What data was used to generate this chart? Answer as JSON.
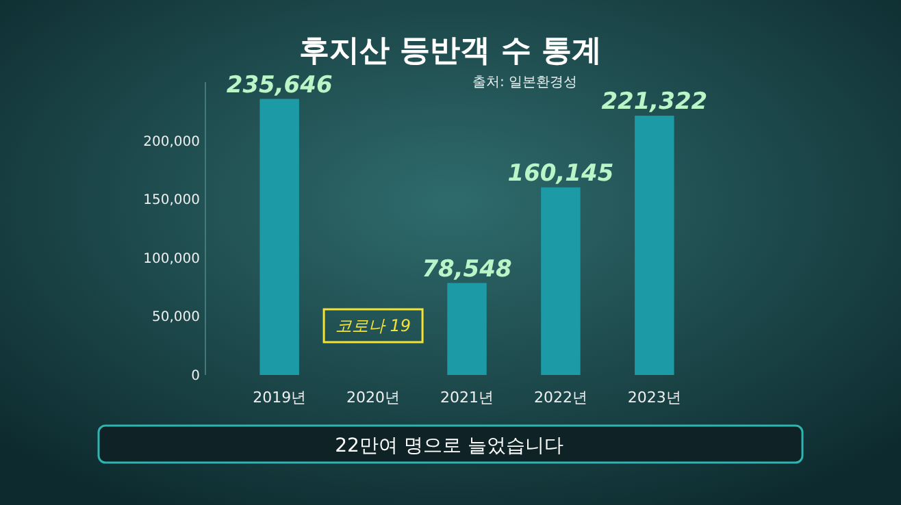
{
  "chart_data": {
    "type": "bar",
    "title": "후지산 등반객 수 통계",
    "subtitle": "출처: 일본환경성",
    "categories": [
      "2019년",
      "2020년",
      "2021년",
      "2022년",
      "2023년"
    ],
    "values": [
      235646,
      null,
      78548,
      160145,
      221322
    ],
    "value_labels": [
      "235,646",
      null,
      "78,548",
      "160,145",
      "221,322"
    ],
    "color": "#1c9aa6",
    "ylim": [
      0,
      250000
    ],
    "yticks": [
      {
        "value": 0,
        "label": "0"
      },
      {
        "value": 50000,
        "label": "50,000"
      },
      {
        "value": 100000,
        "label": "100,000"
      },
      {
        "value": 150000,
        "label": "150,000"
      },
      {
        "value": 200000,
        "label": "200,000"
      }
    ],
    "annotations": [
      "코로나 19",
      "22만여 명으로 늘었습니다"
    ]
  }
}
